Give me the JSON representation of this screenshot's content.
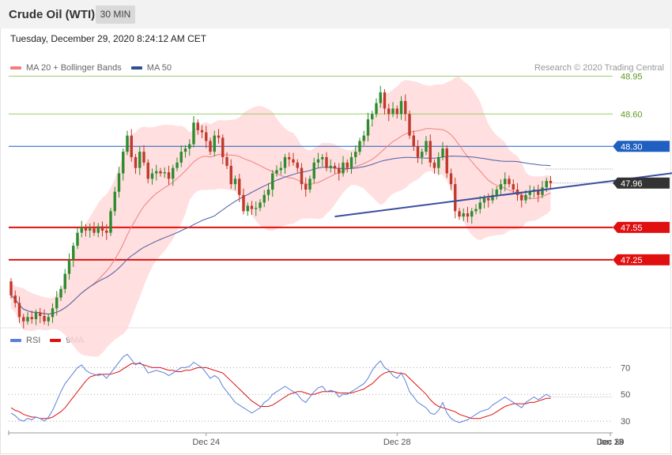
{
  "header": {
    "title": "Crude Oil (WTI)",
    "timeframe": "30 MIN"
  },
  "timestamp": "Tuesday, December 29, 2020 8:24:12 AM CET",
  "legend": {
    "ma20_label": "MA 20 + Bollinger Bands",
    "ma50_label": "MA 50",
    "rsi_label": "RSI",
    "ma9_label": "9MA"
  },
  "copyright": "Research © 2020 Trading Central",
  "colors": {
    "bullish": "#2e8b2e",
    "bearish": "#c0392b",
    "bollinger_fill": "#ffd9d9",
    "ma20": "#f08080",
    "ma50": "#4a5fa8",
    "resistance": "#9acd6b",
    "pivot": "#1f5fbf",
    "support": "#e01010",
    "current": "#333333",
    "rsi": "#5b7fdb",
    "rsi_ma": "#e01010",
    "arrow": "#2f5f9f"
  },
  "chart_data": [
    {
      "type": "candlestick",
      "name": "price",
      "ylim": [
        46.62,
        49.07
      ],
      "levels": [
        {
          "value": 48.95,
          "label": "48.95",
          "kind": "resistance"
        },
        {
          "value": 48.6,
          "label": "48.60",
          "kind": "resistance"
        },
        {
          "value": 48.3,
          "label": "48.30",
          "kind": "pivot"
        },
        {
          "value": 47.96,
          "label": "47.96",
          "kind": "current"
        },
        {
          "value": 47.55,
          "label": "47.55",
          "kind": "support"
        },
        {
          "value": 47.25,
          "label": "47.25",
          "kind": "support"
        }
      ],
      "x_ticks": [
        {
          "index": 47,
          "label": "Dec 24"
        },
        {
          "index": 93,
          "label": "Dec 28"
        },
        {
          "index": 146,
          "label": "Dec 29"
        },
        {
          "index": 166,
          "label": "Dec 30"
        },
        {
          "index": 182,
          "label": "Jan 13"
        }
      ],
      "trendline": {
        "from": [
          78,
          47.65
        ],
        "to": [
          167,
          48.09
        ]
      },
      "projection": {
        "from": [
          169,
          47.98
        ],
        "to": [
          180,
          47.27
        ]
      },
      "close": [
        46.92,
        46.85,
        46.72,
        46.68,
        46.72,
        46.7,
        46.76,
        46.73,
        46.68,
        46.72,
        46.8,
        46.9,
        46.98,
        47.12,
        47.25,
        47.38,
        47.5,
        47.55,
        47.52,
        47.54,
        47.5,
        47.56,
        47.52,
        47.5,
        47.7,
        47.88,
        48.05,
        48.25,
        48.4,
        48.2,
        48.1,
        48.25,
        48.15,
        48.0,
        48.05,
        48.07,
        48.05,
        48.06,
        48.0,
        48.1,
        48.15,
        48.25,
        48.28,
        48.32,
        48.52,
        48.45,
        48.43,
        48.35,
        48.25,
        48.4,
        48.38,
        48.2,
        48.12,
        47.95,
        48.0,
        47.85,
        47.7,
        47.75,
        47.72,
        47.73,
        47.78,
        47.85,
        47.9,
        48.05,
        48.08,
        48.1,
        48.2,
        48.18,
        48.15,
        48.1,
        47.95,
        47.9,
        48.0,
        48.15,
        48.18,
        48.2,
        48.1,
        48.12,
        48.1,
        48.05,
        48.15,
        48.1,
        48.2,
        48.25,
        48.35,
        48.4,
        48.55,
        48.6,
        48.7,
        48.8,
        48.65,
        48.6,
        48.65,
        48.6,
        48.72,
        48.6,
        48.4,
        48.3,
        48.2,
        48.25,
        48.35,
        48.15,
        48.1,
        48.2,
        48.28,
        48.05,
        47.95,
        47.7,
        47.65,
        47.68,
        47.65,
        47.7,
        47.72,
        47.78,
        47.82,
        47.8,
        47.85,
        47.9,
        47.95,
        48.0,
        47.95,
        47.9,
        47.85,
        47.8,
        47.85,
        47.88,
        47.9,
        47.85,
        47.92,
        47.98,
        47.96
      ],
      "open": [
        47.05,
        46.92,
        46.85,
        46.72,
        46.68,
        46.72,
        46.7,
        46.76,
        46.73,
        46.68,
        46.72,
        46.8,
        46.9,
        46.98,
        47.12,
        47.25,
        47.38,
        47.5,
        47.55,
        47.52,
        47.54,
        47.5,
        47.56,
        47.52,
        47.5,
        47.7,
        47.88,
        48.05,
        48.25,
        48.4,
        48.2,
        48.1,
        48.25,
        48.15,
        48.0,
        48.05,
        48.07,
        48.05,
        48.06,
        48.0,
        48.1,
        48.15,
        48.25,
        48.28,
        48.32,
        48.52,
        48.45,
        48.43,
        48.35,
        48.25,
        48.4,
        48.38,
        48.2,
        48.12,
        47.95,
        48.0,
        47.85,
        47.7,
        47.75,
        47.72,
        47.73,
        47.78,
        47.85,
        47.9,
        48.05,
        48.08,
        48.1,
        48.2,
        48.18,
        48.15,
        48.1,
        47.95,
        47.9,
        48.0,
        48.15,
        48.18,
        48.2,
        48.1,
        48.12,
        48.1,
        48.05,
        48.15,
        48.1,
        48.2,
        48.25,
        48.35,
        48.4,
        48.55,
        48.6,
        48.7,
        48.8,
        48.65,
        48.6,
        48.65,
        48.6,
        48.72,
        48.6,
        48.4,
        48.3,
        48.2,
        48.25,
        48.35,
        48.15,
        48.1,
        48.2,
        48.28,
        48.05,
        47.95,
        47.7,
        47.65,
        47.68,
        47.65,
        47.7,
        47.72,
        47.78,
        47.82,
        47.8,
        47.85,
        47.9,
        47.95,
        48.0,
        47.95,
        47.9,
        47.85,
        47.8,
        47.85,
        47.88,
        47.9,
        47.85,
        47.92,
        47.98
      ]
    },
    {
      "type": "line",
      "name": "rsi",
      "ylim": [
        20,
        85
      ],
      "y_ticks": [
        30,
        50,
        70
      ],
      "rsi": [
        36,
        34,
        31,
        30,
        32,
        31,
        33,
        32,
        30,
        33,
        38,
        45,
        52,
        58,
        62,
        66,
        70,
        72,
        68,
        66,
        65,
        64,
        65,
        62,
        66,
        70,
        74,
        78,
        80,
        76,
        72,
        74,
        71,
        66,
        67,
        68,
        67,
        66,
        64,
        66,
        68,
        70,
        70,
        71,
        74,
        72,
        70,
        66,
        62,
        64,
        62,
        56,
        52,
        48,
        44,
        42,
        40,
        38,
        36,
        38,
        40,
        44,
        46,
        50,
        52,
        54,
        56,
        54,
        52,
        50,
        46,
        44,
        48,
        52,
        55,
        56,
        52,
        53,
        52,
        48,
        50,
        50,
        52,
        54,
        56,
        58,
        62,
        68,
        72,
        75,
        70,
        68,
        64,
        62,
        66,
        60,
        52,
        48,
        44,
        42,
        40,
        36,
        35,
        38,
        44,
        36,
        32,
        30,
        29,
        30,
        31,
        33,
        35,
        37,
        38,
        39,
        42,
        44,
        46,
        48,
        46,
        44,
        42,
        40,
        44,
        46,
        48,
        46,
        48,
        50,
        48
      ],
      "ma9": [
        40,
        38,
        37,
        35,
        34,
        33,
        33,
        32,
        32,
        32,
        33,
        35,
        37,
        40,
        44,
        48,
        52,
        56,
        60,
        63,
        64,
        65,
        65,
        65,
        65,
        66,
        67,
        69,
        71,
        73,
        73,
        73,
        72,
        71,
        70,
        70,
        70,
        69,
        68,
        68,
        67,
        67,
        68,
        68,
        69,
        70,
        70,
        70,
        69,
        68,
        67,
        66,
        63,
        60,
        57,
        54,
        51,
        48,
        45,
        43,
        41,
        41,
        41,
        42,
        44,
        46,
        48,
        50,
        51,
        52,
        52,
        51,
        50,
        50,
        51,
        52,
        52,
        52,
        52,
        51,
        51,
        51,
        51,
        52,
        53,
        54,
        56,
        58,
        61,
        64,
        66,
        67,
        67,
        66,
        66,
        65,
        62,
        59,
        56,
        53,
        50,
        46,
        43,
        41,
        40,
        39,
        38,
        37,
        35,
        34,
        33,
        32,
        32,
        32,
        33,
        34,
        35,
        37,
        39,
        41,
        42,
        43,
        43,
        43,
        43,
        44,
        44,
        45,
        46,
        47,
        47
      ]
    }
  ]
}
